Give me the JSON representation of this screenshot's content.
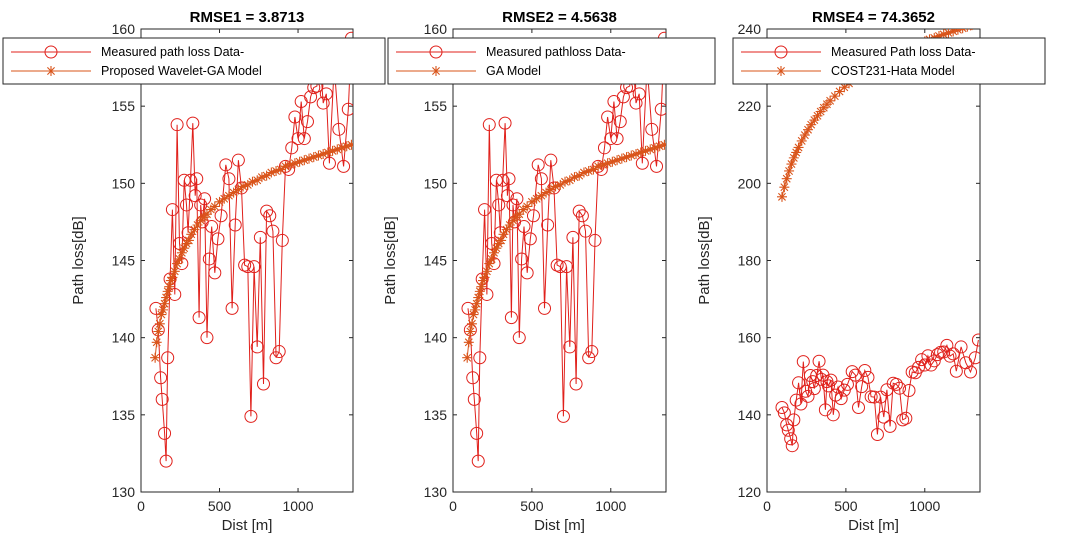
{
  "figure": {
    "measured_color": "#e0201b",
    "model_color": "#d9541a"
  },
  "chart_data": [
    {
      "type": "line",
      "title": "RMSE1 = 3.8713",
      "xlabel": "Dist [m]",
      "ylabel": "Path loss[dB]",
      "xlim": [
        0,
        1350
      ],
      "ylim": [
        130,
        160
      ],
      "xticks": [
        "0",
        "500",
        "1000"
      ],
      "yticks": [
        "130",
        "135",
        "140",
        "145",
        "150",
        "155",
        "160"
      ],
      "legend": {
        "position": "top",
        "entries": [
          "Measured path loss Data-",
          "Proposed Wavelet-GA Model"
        ]
      },
      "series": [
        {
          "name": "Measured path loss Data-",
          "marker": "circle",
          "x": [
            95,
            110,
            125,
            135,
            150,
            160,
            170,
            185,
            200,
            215,
            230,
            245,
            260,
            275,
            290,
            300,
            315,
            330,
            345,
            355,
            370,
            380,
            390,
            405,
            420,
            435,
            450,
            470,
            490,
            510,
            540,
            560,
            580,
            600,
            620,
            640,
            660,
            680,
            700,
            720,
            740,
            760,
            780,
            800,
            820,
            840,
            860,
            880,
            900,
            920,
            940,
            960,
            980,
            1000,
            1020,
            1040,
            1060,
            1080,
            1100,
            1120,
            1140,
            1160,
            1180,
            1200,
            1230,
            1260,
            1290,
            1320,
            1340
          ],
          "y": [
            141.9,
            140.5,
            137.4,
            136.0,
            133.8,
            132.0,
            138.7,
            143.8,
            148.3,
            142.8,
            153.8,
            146.1,
            144.8,
            150.2,
            148.6,
            146.8,
            150.2,
            153.9,
            149.2,
            150.3,
            141.3,
            148.6,
            147.5,
            149.0,
            140.0,
            145.1,
            147.2,
            144.2,
            146.4,
            147.9,
            151.2,
            150.3,
            141.9,
            147.3,
            151.5,
            149.7,
            144.7,
            144.6,
            134.9,
            144.6,
            139.4,
            146.5,
            137.0,
            148.2,
            147.9,
            146.9,
            138.7,
            139.1,
            146.3,
            151.1,
            150.9,
            152.3,
            154.3,
            152.9,
            155.3,
            152.9,
            154.0,
            155.6,
            156.2,
            156.3,
            158.0,
            155.2,
            155.8,
            151.3,
            157.6,
            153.5,
            151.1,
            154.8,
            159.4
          ]
        },
        {
          "name": "Proposed Wavelet-GA Model",
          "marker": "star",
          "x": [
            90,
            100,
            110,
            120,
            130,
            140,
            150,
            160,
            170,
            180,
            190,
            200,
            215,
            230,
            245,
            260,
            275,
            290,
            305,
            320,
            340,
            360,
            380,
            400,
            420,
            445,
            470,
            500,
            530,
            560,
            590,
            620,
            650,
            680,
            710,
            740,
            770,
            800,
            830,
            860,
            890,
            920,
            950,
            980,
            1010,
            1040,
            1070,
            1100,
            1130,
            1160,
            1190,
            1220,
            1250,
            1280,
            1310,
            1340
          ],
          "y": [
            138.7,
            139.7,
            140.4,
            140.9,
            141.5,
            141.8,
            142.2,
            142.6,
            143.0,
            143.3,
            143.7,
            143.9,
            144.3,
            144.8,
            145.1,
            145.5,
            145.8,
            146.1,
            146.3,
            146.7,
            147.0,
            147.3,
            147.6,
            147.8,
            148.0,
            148.3,
            148.5,
            148.8,
            149.0,
            149.2,
            149.4,
            149.6,
            149.8,
            149.9,
            150.1,
            150.2,
            150.4,
            150.5,
            150.7,
            150.8,
            150.9,
            151.1,
            151.2,
            151.3,
            151.4,
            151.5,
            151.6,
            151.7,
            151.8,
            151.9,
            152.0,
            152.1,
            152.2,
            152.3,
            152.4,
            152.5
          ]
        }
      ]
    },
    {
      "type": "line",
      "title": "RMSE2 = 4.5638",
      "xlabel": "Dist [m]",
      "ylabel": "Path loss[dB]",
      "xlim": [
        0,
        1350
      ],
      "ylim": [
        130,
        160
      ],
      "xticks": [
        "0",
        "500",
        "1000"
      ],
      "yticks": [
        "130",
        "135",
        "140",
        "145",
        "150",
        "155",
        "160"
      ],
      "legend": {
        "position": "top",
        "entries": [
          "Measured pathloss Data-",
          "GA Model"
        ]
      },
      "series": [
        {
          "name": "Measured pathloss Data-",
          "marker": "circle",
          "x": [
            95,
            110,
            125,
            135,
            150,
            160,
            170,
            185,
            200,
            215,
            230,
            245,
            260,
            275,
            290,
            300,
            315,
            330,
            345,
            355,
            370,
            380,
            390,
            405,
            420,
            435,
            450,
            470,
            490,
            510,
            540,
            560,
            580,
            600,
            620,
            640,
            660,
            680,
            700,
            720,
            740,
            760,
            780,
            800,
            820,
            840,
            860,
            880,
            900,
            920,
            940,
            960,
            980,
            1000,
            1020,
            1040,
            1060,
            1080,
            1100,
            1120,
            1140,
            1160,
            1180,
            1200,
            1230,
            1260,
            1290,
            1320,
            1340
          ],
          "y": [
            141.9,
            140.5,
            137.4,
            136.0,
            133.8,
            132.0,
            138.7,
            143.8,
            148.3,
            142.8,
            153.8,
            146.1,
            144.8,
            150.2,
            148.6,
            146.8,
            150.2,
            153.9,
            149.2,
            150.3,
            141.3,
            148.6,
            147.5,
            149.0,
            140.0,
            145.1,
            147.2,
            144.2,
            146.4,
            147.9,
            151.2,
            150.3,
            141.9,
            147.3,
            151.5,
            149.7,
            144.7,
            144.6,
            134.9,
            144.6,
            139.4,
            146.5,
            137.0,
            148.2,
            147.9,
            146.9,
            138.7,
            139.1,
            146.3,
            151.1,
            150.9,
            152.3,
            154.3,
            152.9,
            155.3,
            152.9,
            154.0,
            155.6,
            156.2,
            156.3,
            158.0,
            155.2,
            155.8,
            151.3,
            157.6,
            153.5,
            151.1,
            154.8,
            159.4
          ]
        },
        {
          "name": "GA Model",
          "marker": "star",
          "x": [
            90,
            100,
            110,
            120,
            130,
            140,
            150,
            160,
            170,
            180,
            190,
            200,
            215,
            230,
            245,
            260,
            275,
            290,
            305,
            320,
            340,
            360,
            380,
            400,
            420,
            445,
            470,
            500,
            530,
            560,
            590,
            620,
            650,
            680,
            710,
            740,
            770,
            800,
            830,
            860,
            890,
            920,
            950,
            980,
            1010,
            1040,
            1070,
            1100,
            1130,
            1160,
            1190,
            1220,
            1250,
            1280,
            1310,
            1340
          ],
          "y": [
            138.7,
            139.7,
            140.4,
            140.9,
            141.5,
            141.8,
            142.2,
            142.6,
            143.0,
            143.3,
            143.7,
            143.9,
            144.3,
            144.8,
            145.1,
            145.5,
            145.8,
            146.1,
            146.3,
            146.7,
            147.0,
            147.3,
            147.6,
            147.8,
            148.0,
            148.3,
            148.5,
            148.8,
            149.0,
            149.2,
            149.4,
            149.6,
            149.8,
            149.9,
            150.1,
            150.2,
            150.4,
            150.5,
            150.7,
            150.8,
            150.9,
            151.1,
            151.2,
            151.3,
            151.4,
            151.5,
            151.6,
            151.7,
            151.8,
            151.9,
            152.0,
            152.1,
            152.2,
            152.3,
            152.4,
            152.5
          ]
        }
      ]
    },
    {
      "type": "line",
      "title": "RMSE4 = 74.3652",
      "xlabel": "Dist [m]",
      "ylabel": "Path loss[dB]",
      "xlim": [
        0,
        1350
      ],
      "ylim": [
        120,
        240
      ],
      "xticks": [
        "0",
        "500",
        "1000"
      ],
      "yticks": [
        "120",
        "140",
        "160",
        "180",
        "200",
        "220",
        "240"
      ],
      "legend": {
        "position": "top",
        "entries": [
          "Measured Path loss Data-",
          "COST231-Hata Model"
        ]
      },
      "series": [
        {
          "name": "Measured Path loss Data-",
          "marker": "circle",
          "x": [
            95,
            110,
            125,
            135,
            150,
            160,
            170,
            185,
            200,
            215,
            230,
            245,
            260,
            275,
            290,
            300,
            315,
            330,
            345,
            355,
            370,
            380,
            390,
            405,
            420,
            435,
            450,
            470,
            490,
            510,
            540,
            560,
            580,
            600,
            620,
            640,
            660,
            680,
            700,
            720,
            740,
            760,
            780,
            800,
            820,
            840,
            860,
            880,
            900,
            920,
            940,
            960,
            980,
            1000,
            1020,
            1040,
            1060,
            1080,
            1100,
            1120,
            1140,
            1160,
            1180,
            1200,
            1230,
            1260,
            1290,
            1320,
            1340
          ],
          "y": [
            141.9,
            140.5,
            137.4,
            136.0,
            133.8,
            132.0,
            138.7,
            143.8,
            148.3,
            142.8,
            153.8,
            146.1,
            144.8,
            150.2,
            148.6,
            146.8,
            150.2,
            153.9,
            149.2,
            150.3,
            141.3,
            148.6,
            147.5,
            149.0,
            140.0,
            145.1,
            147.2,
            144.2,
            146.4,
            147.9,
            151.2,
            150.3,
            141.9,
            147.3,
            151.5,
            149.7,
            144.7,
            144.6,
            134.9,
            144.6,
            139.4,
            146.5,
            137.0,
            148.2,
            147.9,
            146.9,
            138.7,
            139.1,
            146.3,
            151.1,
            150.9,
            152.3,
            154.3,
            152.9,
            155.3,
            152.9,
            154.0,
            155.6,
            156.2,
            156.3,
            158.0,
            155.2,
            155.8,
            151.3,
            157.6,
            153.5,
            151.1,
            154.8,
            159.4
          ]
        },
        {
          "name": "COST231-Hata Model",
          "marker": "star",
          "x": [
            95,
            110,
            125,
            140,
            155,
            170,
            185,
            200,
            220,
            240,
            260,
            280,
            300,
            320,
            340,
            360,
            380,
            400,
            430,
            460,
            490,
            520,
            550,
            580,
            610,
            640,
            670,
            700,
            730,
            760,
            790,
            820,
            850,
            880,
            910,
            940,
            970,
            1000,
            1030,
            1060,
            1090,
            1120,
            1150,
            1180,
            1210,
            1240,
            1270,
            1300,
            1330,
            1345
          ],
          "y": [
            196.5,
            199.0,
            201.2,
            203.2,
            205.0,
            206.6,
            208.0,
            209.3,
            211.0,
            212.5,
            213.9,
            215.2,
            216.4,
            217.5,
            218.6,
            219.6,
            220.5,
            221.4,
            222.6,
            223.8,
            224.9,
            225.9,
            226.9,
            227.8,
            228.6,
            229.4,
            230.2,
            230.9,
            231.6,
            232.3,
            232.9,
            233.5,
            234.1,
            234.7,
            235.2,
            235.8,
            236.3,
            236.8,
            237.3,
            237.7,
            238.2,
            238.6,
            239.0,
            239.4,
            239.8,
            240.2,
            240.6,
            241.0,
            241.4,
            241.6
          ]
        }
      ]
    }
  ]
}
